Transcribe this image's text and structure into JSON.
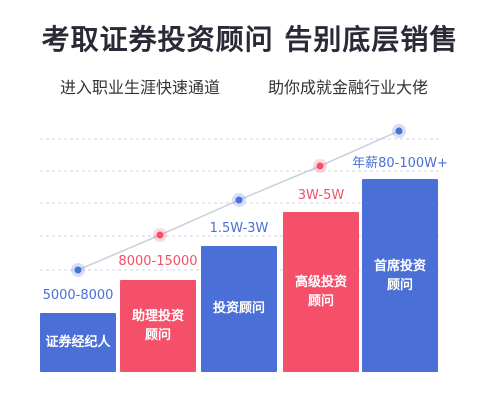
{
  "header": {
    "title": "考取证券投资顾问 告别底层销售",
    "subtitle_left": "进入职业生涯快速通道",
    "subtitle_right": "助你成就金融行业大佬"
  },
  "tiers": [
    {
      "title": "证券经纪人",
      "salary": "5000-8000",
      "color": "#4a6fd6",
      "label_color": "#4a6fd6",
      "level": 1
    },
    {
      "title": "助理投资顾问",
      "salary": "8000-15000",
      "color": "#f4506a",
      "label_color": "#f4506a",
      "level": 2
    },
    {
      "title": "投资顾问",
      "salary": "1.5W-3W",
      "color": "#4a6fd6",
      "label_color": "#4a6fd6",
      "level": 3
    },
    {
      "title": "高级投资顾问",
      "salary": "3W-5W",
      "color": "#f4506a",
      "label_color": "#f4506a",
      "level": 4
    },
    {
      "title": "首席投资顾问",
      "salary": "年薪80-100W+",
      "color": "#4a6fd6",
      "label_color": "#4a6fd6",
      "level": 5
    }
  ],
  "colors": {
    "blue": "#4a6fd6",
    "pink": "#f4506a",
    "trend_line": "#c9d0de",
    "headline": "#2a2a36"
  }
}
